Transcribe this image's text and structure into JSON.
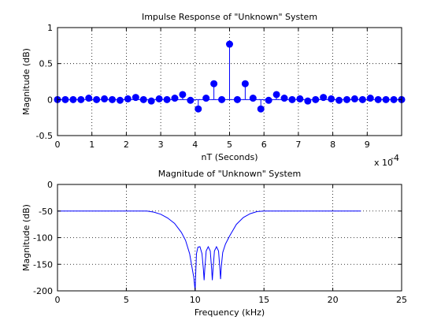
{
  "chart_data": [
    {
      "type": "stem",
      "title": "Impulse Response of \"Unknown\" System",
      "xlabel": "nT (Seconds)",
      "ylabel": "Magnitude (dB)",
      "x_multiplier_label": "x 10",
      "x_multiplier_exponent": "-4",
      "xlim": [
        0,
        10
      ],
      "ylim": [
        -0.5,
        1
      ],
      "grid": true,
      "xticks": [
        "0",
        "1",
        "2",
        "3",
        "4",
        "5",
        "6",
        "7",
        "8",
        "9"
      ],
      "yticks": [
        "-0.5",
        "0",
        "0.5",
        "1"
      ],
      "xtick_values": [
        0,
        1,
        2,
        3,
        4,
        5,
        6,
        7,
        8,
        9
      ],
      "ytick_values": [
        -0.5,
        0,
        0.5,
        1
      ],
      "series": [
        {
          "color": "#0000ff",
          "x": [
            0.0,
            0.227,
            0.455,
            0.682,
            0.909,
            1.136,
            1.364,
            1.591,
            1.818,
            2.045,
            2.273,
            2.5,
            2.727,
            2.955,
            3.182,
            3.409,
            3.636,
            3.864,
            4.091,
            4.318,
            4.545,
            4.773,
            5.0,
            5.227,
            5.455,
            5.682,
            5.909,
            6.136,
            6.364,
            6.591,
            6.818,
            7.045,
            7.273,
            7.5,
            7.727,
            7.955,
            8.182,
            8.409,
            8.636,
            8.864,
            9.091,
            9.318,
            9.545,
            9.773,
            10.0
          ],
          "y": [
            0.0,
            0.0,
            0.0,
            0.0,
            0.02,
            0.0,
            0.01,
            0.0,
            -0.01,
            0.01,
            0.03,
            0.0,
            -0.02,
            0.01,
            0.0,
            0.02,
            0.07,
            -0.01,
            -0.13,
            0.02,
            0.22,
            0.0,
            0.77,
            0.0,
            0.22,
            0.02,
            -0.13,
            -0.01,
            0.07,
            0.02,
            0.0,
            0.01,
            -0.02,
            0.0,
            0.03,
            0.01,
            -0.01,
            0.0,
            0.01,
            0.0,
            0.02,
            0.0,
            0.0,
            0.0,
            0.0
          ]
        }
      ]
    },
    {
      "type": "line",
      "title": "Magnitude of \"Unknown\" System",
      "xlabel": "Frequency (kHz)",
      "ylabel": "Magnitude (dB)",
      "xlim": [
        0,
        25
      ],
      "ylim": [
        -200,
        0
      ],
      "grid": true,
      "xticks": [
        "0",
        "5",
        "10",
        "15",
        "20",
        "25"
      ],
      "yticks": [
        "-200",
        "-150",
        "-100",
        "-50",
        "0"
      ],
      "xtick_values": [
        0,
        5,
        10,
        15,
        20,
        25
      ],
      "ytick_values": [
        -200,
        -150,
        -100,
        -50,
        0
      ],
      "series": [
        {
          "color": "#0000ff",
          "x": [
            0,
            6.5,
            7.0,
            7.5,
            8.0,
            8.5,
            9.0,
            9.3,
            9.6,
            9.8,
            9.9,
            10.0,
            10.05,
            10.1,
            10.2,
            10.35,
            10.5,
            10.6,
            10.65,
            10.7,
            10.8,
            10.95,
            11.1,
            11.2,
            11.25,
            11.3,
            11.4,
            11.55,
            11.7,
            11.8,
            11.85,
            11.9,
            12.0,
            12.2,
            12.5,
            13.0,
            13.5,
            14.0,
            14.5,
            15.0,
            22.05
          ],
          "y": [
            -50,
            -50,
            -52,
            -56,
            -63,
            -73,
            -90,
            -105,
            -130,
            -160,
            -175,
            -200,
            -160,
            -130,
            -118,
            -117,
            -130,
            -160,
            -180,
            -160,
            -125,
            -117,
            -125,
            -160,
            -180,
            -160,
            -125,
            -117,
            -125,
            -160,
            -178,
            -155,
            -128,
            -112,
            -97,
            -75,
            -62,
            -55,
            -51,
            -50,
            -50
          ]
        }
      ]
    }
  ]
}
